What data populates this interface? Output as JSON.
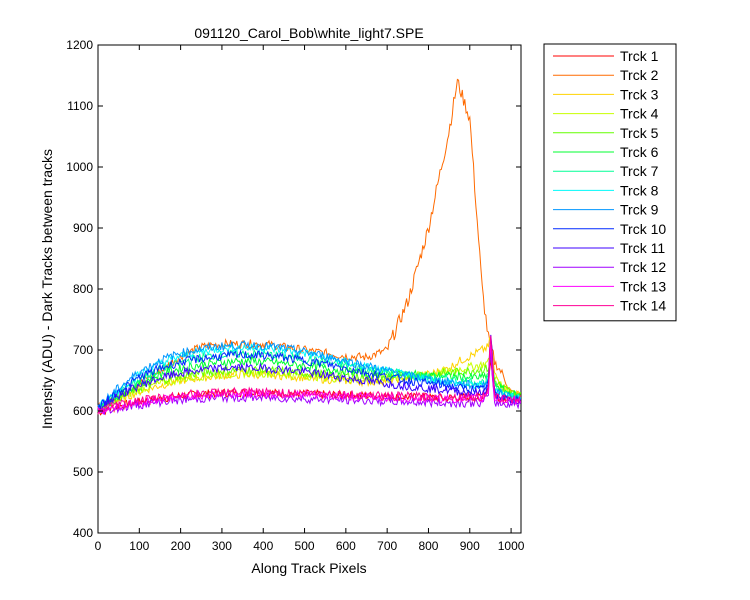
{
  "chart_data": {
    "type": "line",
    "title": "091120_Carol_Bob\\white_light7.SPE",
    "xlabel": "Along Track Pixels",
    "ylabel": "Intensity (ADU) - Dark Tracks between tracks",
    "xlim": [
      0,
      1024
    ],
    "ylim": [
      400,
      1200
    ],
    "xticks": [
      0,
      100,
      200,
      300,
      400,
      500,
      600,
      700,
      800,
      900,
      1000
    ],
    "yticks": [
      400,
      500,
      600,
      700,
      800,
      900,
      1000,
      1100,
      1200
    ],
    "grid": false,
    "legend_position": "outside-right",
    "x": [
      0,
      50,
      100,
      150,
      200,
      250,
      300,
      350,
      400,
      450,
      500,
      550,
      600,
      650,
      700,
      750,
      800,
      850,
      870,
      900,
      930,
      945,
      950,
      960,
      980,
      1000,
      1023
    ],
    "series": [
      {
        "name": "Trck 1",
        "color": "#ff0000",
        "values": [
          598,
          608,
          615,
          620,
          625,
          628,
          630,
          630,
          630,
          629,
          628,
          627,
          626,
          625,
          624,
          623,
          622,
          622,
          622,
          622,
          622,
          640,
          690,
          625,
          620,
          620,
          618
        ]
      },
      {
        "name": "Trck 2",
        "color": "#ff6a00",
        "values": [
          605,
          622,
          645,
          665,
          690,
          705,
          710,
          710,
          710,
          705,
          700,
          695,
          690,
          688,
          700,
          780,
          900,
          1060,
          1140,
          1080,
          800,
          720,
          710,
          680,
          660,
          630,
          625
        ]
      },
      {
        "name": "Trck 3",
        "color": "#ffd200",
        "values": [
          605,
          618,
          632,
          642,
          650,
          655,
          658,
          660,
          660,
          658,
          655,
          652,
          650,
          648,
          650,
          655,
          660,
          670,
          680,
          690,
          700,
          705,
          720,
          660,
          640,
          630,
          625
        ]
      },
      {
        "name": "Trck 4",
        "color": "#c8ff00",
        "values": [
          605,
          620,
          635,
          645,
          652,
          657,
          660,
          662,
          662,
          660,
          658,
          655,
          652,
          650,
          652,
          655,
          660,
          665,
          668,
          672,
          676,
          680,
          700,
          655,
          640,
          630,
          625
        ]
      },
      {
        "name": "Trck 5",
        "color": "#64ff00",
        "values": [
          605,
          622,
          638,
          650,
          658,
          663,
          666,
          668,
          667,
          665,
          662,
          660,
          658,
          656,
          657,
          658,
          660,
          662,
          664,
          666,
          668,
          670,
          690,
          650,
          638,
          630,
          625
        ]
      },
      {
        "name": "Trck 6",
        "color": "#00ff32",
        "values": [
          605,
          625,
          645,
          660,
          670,
          676,
          680,
          682,
          681,
          678,
          674,
          670,
          666,
          663,
          662,
          660,
          658,
          657,
          656,
          655,
          655,
          660,
          700,
          645,
          635,
          628,
          624
        ]
      },
      {
        "name": "Trck 7",
        "color": "#00ff96",
        "values": [
          606,
          630,
          652,
          668,
          680,
          688,
          692,
          694,
          693,
          690,
          685,
          680,
          675,
          670,
          665,
          660,
          655,
          652,
          650,
          648,
          647,
          652,
          700,
          640,
          632,
          626,
          622
        ]
      },
      {
        "name": "Trck 8",
        "color": "#00fafa",
        "values": [
          606,
          635,
          660,
          678,
          690,
          698,
          702,
          704,
          703,
          700,
          695,
          688,
          680,
          672,
          665,
          658,
          652,
          648,
          645,
          643,
          642,
          650,
          705,
          636,
          630,
          625,
          620
        ]
      },
      {
        "name": "Trck 9",
        "color": "#0096ff",
        "values": [
          606,
          638,
          664,
          683,
          695,
          702,
          706,
          708,
          707,
          703,
          697,
          690,
          682,
          674,
          666,
          658,
          652,
          648,
          645,
          643,
          642,
          650,
          710,
          634,
          628,
          623,
          618
        ]
      },
      {
        "name": "Trck 10",
        "color": "#0028ff",
        "values": [
          605,
          632,
          655,
          670,
          680,
          686,
          690,
          692,
          691,
          688,
          683,
          677,
          670,
          663,
          656,
          650,
          645,
          641,
          638,
          636,
          635,
          645,
          700,
          630,
          624,
          620,
          616
        ]
      },
      {
        "name": "Trck 11",
        "color": "#3c00ff",
        "values": [
          604,
          625,
          642,
          654,
          662,
          667,
          670,
          671,
          670,
          668,
          664,
          659,
          654,
          649,
          645,
          641,
          637,
          634,
          632,
          630,
          629,
          640,
          740,
          626,
          620,
          617,
          614
        ]
      },
      {
        "name": "Trck 12",
        "color": "#a000ff",
        "values": [
          598,
          605,
          610,
          615,
          618,
          620,
          622,
          622,
          622,
          621,
          620,
          619,
          618,
          617,
          616,
          615,
          614,
          613,
          613,
          613,
          613,
          625,
          700,
          613,
          612,
          612,
          612
        ]
      },
      {
        "name": "Trck 13",
        "color": "#ff00ff",
        "values": [
          600,
          608,
          614,
          619,
          623,
          626,
          628,
          628,
          628,
          627,
          626,
          625,
          624,
          623,
          622,
          621,
          620,
          620,
          620,
          620,
          620,
          632,
          720,
          620,
          618,
          618,
          617
        ]
      },
      {
        "name": "Trck 14",
        "color": "#ff0096",
        "values": [
          601,
          610,
          617,
          622,
          626,
          629,
          631,
          631,
          631,
          630,
          629,
          628,
          627,
          626,
          625,
          624,
          623,
          623,
          623,
          623,
          623,
          635,
          730,
          623,
          621,
          620,
          619
        ]
      }
    ]
  }
}
